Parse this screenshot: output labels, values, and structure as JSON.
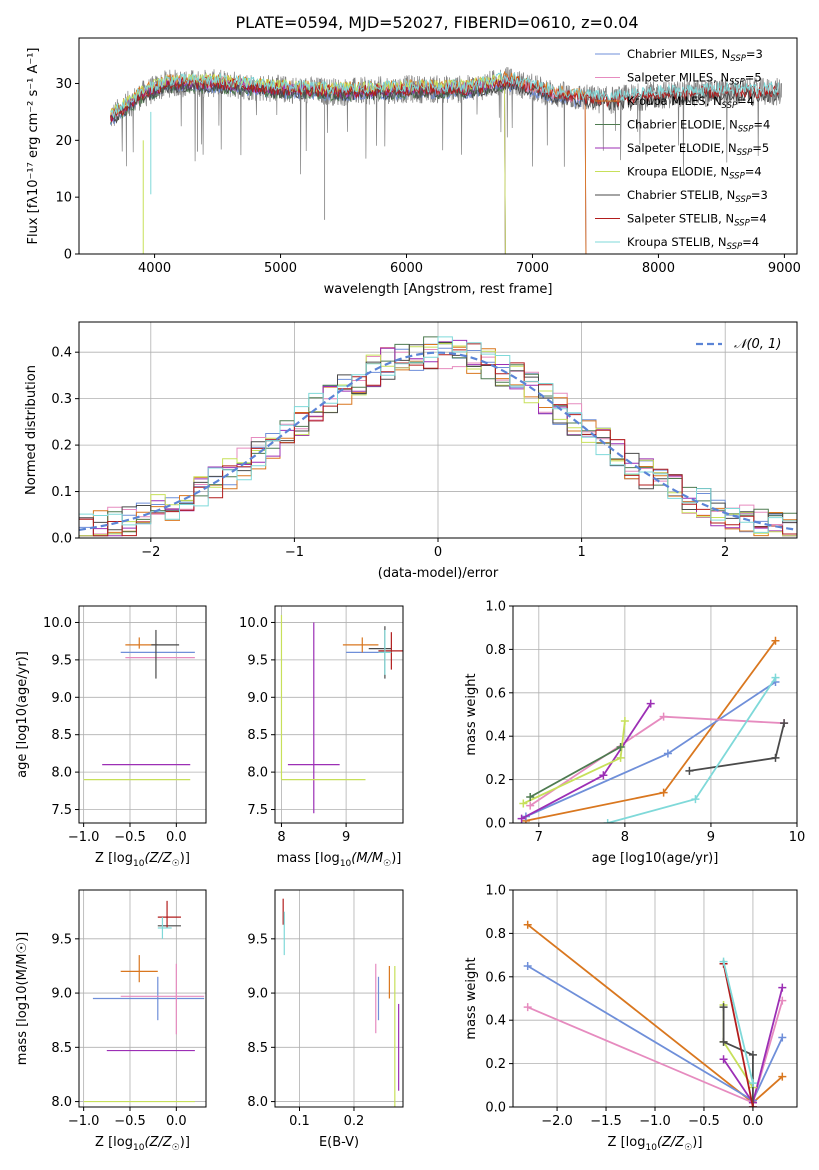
{
  "title": "PLATE=0594, MJD=52027, FIBERID=0610, z=0.04",
  "colors": {
    "Chabrier MILES": "#6f8fd9",
    "Salpeter MILES": "#e68bbf",
    "Kroupa MILES": "#d9771f",
    "Chabrier ELODIE": "#4e7b50",
    "Salpeter ELODIE": "#9c2fb5",
    "Kroupa ELODIE": "#c7e05a",
    "Chabrier STELIB": "#4a4a4a",
    "Salpeter STELIB": "#b21d1d",
    "Kroupa STELIB": "#7fd9d9",
    "gaussian": "#5b84d6"
  },
  "chart_data": [
    {
      "type": "line",
      "panel": "spectrum",
      "xlabel": "wavelength [Angstrom, rest frame]",
      "ylabel": "Flux [fλ10⁻¹⁷ erg cm⁻² s⁻¹ A⁻¹]",
      "xlim": [
        3400,
        9100
      ],
      "ylim": [
        0,
        38
      ],
      "xticks": [
        4000,
        5000,
        6000,
        7000,
        8000,
        9000
      ],
      "yticks": [
        0,
        10,
        20,
        30
      ],
      "legend_placement": "top-right",
      "legend": [
        {
          "name": "Chabrier MILES, N",
          "sub": "SSP",
          "tail": "=3"
        },
        {
          "name": "Salpeter MILES, N",
          "sub": "SSP",
          "tail": "=5"
        },
        {
          "name": "Kroupa MILES, N",
          "sub": "SSP",
          "tail": "=4"
        },
        {
          "name": "Chabrier ELODIE, N",
          "sub": "SSP",
          "tail": "=4"
        },
        {
          "name": "Salpeter ELODIE, N",
          "sub": "SSP",
          "tail": "=5"
        },
        {
          "name": "Kroupa ELODIE, N",
          "sub": "SSP",
          "tail": "=4"
        },
        {
          "name": "Chabrier STELIB, N",
          "sub": "SSP",
          "tail": "=3"
        },
        {
          "name": "Salpeter STELIB, N",
          "sub": "SSP",
          "tail": "=4"
        },
        {
          "name": "Kroupa STELIB, N",
          "sub": "SSP",
          "tail": "=4"
        }
      ],
      "data_spectrum": {
        "x_range": [
          3650,
          8980
        ],
        "continuum": [
          [
            3650,
            24
          ],
          [
            3900,
            28
          ],
          [
            4100,
            30
          ],
          [
            4500,
            30
          ],
          [
            5000,
            29
          ],
          [
            5500,
            28.5
          ],
          [
            6000,
            29
          ],
          [
            6500,
            29
          ],
          [
            6800,
            30.5
          ],
          [
            7200,
            28
          ],
          [
            7600,
            27
          ],
          [
            8000,
            28
          ],
          [
            8500,
            28.5
          ],
          [
            8980,
            28.5
          ]
        ]
      },
      "model_ends": [
        {
          "model": "Chabrier MILES",
          "x_end": 7420
        },
        {
          "model": "Salpeter MILES",
          "x_end": 7420
        },
        {
          "model": "Kroupa MILES",
          "x_end": 7420
        },
        {
          "model": "Chabrier ELODIE",
          "x_end": 6780
        },
        {
          "model": "Salpeter ELODIE",
          "x_end": 6780
        },
        {
          "model": "Kroupa ELODIE",
          "x_end": 6780
        },
        {
          "model": "Chabrier STELIB",
          "x_end": 8960
        },
        {
          "model": "Salpeter STELIB",
          "x_end": 8960
        },
        {
          "model": "Kroupa STELIB",
          "x_end": 8960
        }
      ]
    },
    {
      "type": "histogram",
      "panel": "residuals",
      "xlabel": "(data-model)/error",
      "ylabel": "Normed distribution",
      "xlim": [
        -2.5,
        2.5
      ],
      "ylim": [
        0,
        0.465
      ],
      "xticks": [
        -2,
        -1,
        0,
        1,
        2
      ],
      "yticks": [
        0.0,
        0.1,
        0.2,
        0.3,
        0.4
      ],
      "grid": true,
      "bin_width": 0.1,
      "legend_placement": "top-right",
      "gaussian": {
        "label": "𝒩(0, 1)",
        "mean": 0,
        "sigma": 1,
        "style": "dashed"
      }
    },
    {
      "type": "errorbar",
      "panel": "age-vs-Z",
      "xlabel_prefix": "Z [log",
      "xlabel_sub": "10",
      "xlabel_math": "(Z/Z",
      "xlabel_tail": ")]",
      "ylabel": "age  [log10(age/yr)]",
      "xlim": [
        -1.05,
        0.32
      ],
      "ylim": [
        7.32,
        10.22
      ],
      "xticks": [
        -1.0,
        -0.5,
        0.0
      ],
      "yticks": [
        7.5,
        8.0,
        8.5,
        9.0,
        9.5,
        10.0
      ],
      "grid": true,
      "points": [
        {
          "model": "Chabrier MILES",
          "x": -0.1,
          "y": 9.6,
          "xerr": [
            0.5,
            0.3
          ],
          "yerr": [
            0,
            0
          ]
        },
        {
          "model": "Kroupa MILES",
          "x": -0.4,
          "y": 9.7,
          "xerr": [
            0.15,
            0.2
          ],
          "yerr": [
            0.05,
            0.1
          ]
        },
        {
          "model": "Salpeter MILES",
          "x": -0.2,
          "y": 9.53,
          "xerr": [
            0.35,
            0.4
          ],
          "yerr": [
            0,
            0
          ]
        },
        {
          "model": "Salpeter ELODIE",
          "x": -0.2,
          "y": 8.1,
          "xerr": [
            0.6,
            0.35
          ],
          "yerr": [
            0,
            0
          ]
        },
        {
          "model": "Kroupa ELODIE",
          "x": -0.6,
          "y": 7.9,
          "xerr": [
            0.4,
            0.75
          ],
          "yerr": [
            0,
            0
          ]
        },
        {
          "model": "Chabrier STELIB",
          "x": -0.22,
          "y": 9.7,
          "xerr": [
            0.05,
            0.25
          ],
          "yerr": [
            0.45,
            0.2
          ]
        }
      ]
    },
    {
      "type": "errorbar",
      "panel": "age-vs-mass",
      "xlabel_prefix": "mass [log",
      "xlabel_sub": "10",
      "xlabel_math": "(M/M",
      "xlabel_tail": ")]",
      "xlim": [
        7.9,
        9.88
      ],
      "ylim": [
        7.32,
        10.22
      ],
      "xticks": [
        8,
        9
      ],
      "yticks": [
        7.5,
        8.0,
        8.5,
        9.0,
        9.5,
        10.0
      ],
      "grid": true,
      "points": [
        {
          "model": "Chabrier MILES",
          "x": 9.3,
          "y": 9.6,
          "xerr": [
            0.3,
            0.3
          ],
          "yerr": [
            0,
            0
          ]
        },
        {
          "model": "Kroupa MILES",
          "x": 9.25,
          "y": 9.7,
          "xerr": [
            0.3,
            0.25
          ],
          "yerr": [
            0.1,
            0.1
          ]
        },
        {
          "model": "Salpeter ELODIE",
          "x": 8.5,
          "y": 8.1,
          "xerr": [
            0.4,
            0.4
          ],
          "yerr": [
            0.65,
            1.9
          ]
        },
        {
          "model": "Kroupa ELODIE",
          "x": 8.0,
          "y": 7.9,
          "xerr": [
            0.0,
            1.3
          ],
          "yerr": [
            0,
            2.2
          ]
        },
        {
          "model": "Chabrier STELIB",
          "x": 9.6,
          "y": 9.65,
          "xerr": [
            0.25,
            0.1
          ],
          "yerr": [
            0.4,
            0.3
          ]
        },
        {
          "model": "Salpeter STELIB",
          "x": 9.7,
          "y": 9.62,
          "xerr": [
            0.2,
            0.2
          ],
          "yerr": [
            0.25,
            0.25
          ]
        },
        {
          "model": "Kroupa STELIB",
          "x": 9.6,
          "y": 9.6,
          "xerr": [
            0.1,
            0.1
          ],
          "yerr": [
            0.3,
            0.3
          ]
        }
      ]
    },
    {
      "type": "line",
      "panel": "mass-weight-vs-age",
      "xlabel": "age  [log10(age/yr)]",
      "ylabel": "mass weight",
      "xlim": [
        6.7,
        10.0
      ],
      "ylim": [
        0.0,
        1.0
      ],
      "xticks": [
        7,
        8,
        9,
        10
      ],
      "yticks": [
        0.0,
        0.2,
        0.4,
        0.6,
        0.8,
        1.0
      ],
      "grid": true,
      "series": [
        {
          "model": "Kroupa MILES",
          "points": [
            [
              6.85,
              0.01
            ],
            [
              8.45,
              0.14
            ],
            [
              9.75,
              0.84
            ]
          ]
        },
        {
          "model": "Chabrier MILES",
          "points": [
            [
              6.85,
              0.03
            ],
            [
              8.5,
              0.32
            ],
            [
              9.75,
              0.65
            ]
          ]
        },
        {
          "model": "Salpeter MILES",
          "points": [
            [
              6.9,
              0.08
            ],
            [
              8.45,
              0.49
            ],
            [
              9.85,
              0.46
            ]
          ]
        },
        {
          "model": "Salpeter ELODIE",
          "points": [
            [
              6.8,
              0.02
            ],
            [
              7.75,
              0.22
            ],
            [
              8.3,
              0.55
            ]
          ]
        },
        {
          "model": "Kroupa ELODIE",
          "points": [
            [
              6.82,
              0.09
            ],
            [
              7.95,
              0.3
            ],
            [
              8.0,
              0.47
            ]
          ]
        },
        {
          "model": "Chabrier STELIB",
          "points": [
            [
              8.75,
              0.24
            ],
            [
              9.75,
              0.3
            ],
            [
              9.85,
              0.46
            ]
          ]
        },
        {
          "model": "Chabrier ELODIE",
          "points": [
            [
              6.9,
              0.12
            ],
            [
              7.95,
              0.35
            ]
          ]
        },
        {
          "model": "Kroupa STELIB",
          "points": [
            [
              7.8,
              0.0
            ],
            [
              8.82,
              0.11
            ],
            [
              9.75,
              0.67
            ]
          ]
        }
      ]
    },
    {
      "type": "errorbar",
      "panel": "mass-vs-Z",
      "xlabel_prefix": "Z [log",
      "xlabel_sub": "10",
      "xlabel_math": "(Z/Z",
      "xlabel_tail": ")]",
      "ylabel": "mass [log10(M/M☉)]",
      "xlim": [
        -1.05,
        0.32
      ],
      "ylim": [
        7.95,
        9.95
      ],
      "xticks": [
        -1.0,
        -0.5,
        0.0
      ],
      "yticks": [
        8.0,
        8.5,
        9.0,
        9.5
      ],
      "grid": true,
      "points": [
        {
          "model": "Chabrier MILES",
          "x": -0.2,
          "y": 8.95,
          "xerr": [
            0.7,
            0.5
          ],
          "yerr": [
            0.2,
            0.2
          ]
        },
        {
          "model": "Kroupa MILES",
          "x": -0.4,
          "y": 9.2,
          "xerr": [
            0.2,
            0.2
          ],
          "yerr": [
            0.1,
            0.15
          ]
        },
        {
          "model": "Salpeter MILES",
          "x": 0.0,
          "y": 8.97,
          "xerr": [
            0.6,
            0.3
          ],
          "yerr": [
            0.35,
            0.3
          ]
        },
        {
          "model": "Salpeter ELODIE",
          "x": -0.2,
          "y": 8.47,
          "xerr": [
            0.55,
            0.4
          ],
          "yerr": [
            0,
            0
          ]
        },
        {
          "model": "Kroupa ELODIE",
          "x": -0.2,
          "y": 8.0,
          "xerr": [
            0.8,
            0.4
          ],
          "yerr": [
            0,
            0
          ]
        },
        {
          "model": "Chabrier STELIB",
          "x": -0.1,
          "y": 9.62,
          "xerr": [
            0.1,
            0.15
          ],
          "yerr": [
            0,
            0
          ]
        },
        {
          "model": "Salpeter STELIB",
          "x": -0.1,
          "y": 9.7,
          "xerr": [
            0.1,
            0.15
          ],
          "yerr": [
            0.1,
            0.15
          ]
        },
        {
          "model": "Kroupa STELIB",
          "x": -0.15,
          "y": 9.6,
          "xerr": [
            0.05,
            0.1
          ],
          "yerr": [
            0.1,
            0.1
          ]
        }
      ]
    },
    {
      "type": "errorbar",
      "panel": "mass-vs-EBV",
      "xlabel": "E(B-V)",
      "xlim": [
        0.055,
        0.29
      ],
      "ylim": [
        7.95,
        9.95
      ],
      "xticks": [
        0.1,
        0.2
      ],
      "yticks": [
        8.0,
        8.5,
        9.0,
        9.5
      ],
      "grid": true,
      "points": [
        {
          "model": "Salpeter STELIB",
          "x": 0.07,
          "y": 9.75,
          "xerr": [
            0,
            0
          ],
          "yerr": [
            0.12,
            0.12
          ]
        },
        {
          "model": "Kroupa STELIB",
          "x": 0.072,
          "y": 9.55,
          "xerr": [
            0,
            0
          ],
          "yerr": [
            0.2,
            0.2
          ]
        },
        {
          "model": "Salpeter MILES",
          "x": 0.24,
          "y": 8.95,
          "xerr": [
            0,
            0
          ],
          "yerr": [
            0.32,
            0.32
          ]
        },
        {
          "model": "Chabrier MILES",
          "x": 0.245,
          "y": 8.95,
          "xerr": [
            0,
            0
          ],
          "yerr": [
            0.2,
            0.2
          ]
        },
        {
          "model": "Kroupa MILES",
          "x": 0.265,
          "y": 9.1,
          "xerr": [
            0,
            0
          ],
          "yerr": [
            0.15,
            0.15
          ]
        },
        {
          "model": "Kroupa ELODIE",
          "x": 0.275,
          "y": 8.6,
          "xerr": [
            0,
            0
          ],
          "yerr": [
            0.65,
            0.65
          ]
        },
        {
          "model": "Salpeter ELODIE",
          "x": 0.282,
          "y": 8.5,
          "xerr": [
            0,
            0
          ],
          "yerr": [
            0.4,
            0.4
          ]
        }
      ]
    },
    {
      "type": "line",
      "panel": "mass-weight-vs-Z",
      "xlabel_prefix": "Z [log",
      "xlabel_sub": "10",
      "xlabel_math": "(Z/Z",
      "xlabel_tail": ")]",
      "ylabel": "mass weight",
      "xlim": [
        -2.45,
        0.45
      ],
      "ylim": [
        0.0,
        1.0
      ],
      "xticks": [
        -2.0,
        -1.5,
        -1.0,
        -0.5,
        0.0
      ],
      "yticks": [
        0.0,
        0.2,
        0.4,
        0.6,
        0.8,
        1.0
      ],
      "grid": true,
      "series": [
        {
          "model": "Kroupa MILES",
          "points": [
            [
              -2.3,
              0.84
            ],
            [
              0.0,
              0.02
            ],
            [
              0.3,
              0.14
            ]
          ]
        },
        {
          "model": "Chabrier MILES",
          "points": [
            [
              -2.3,
              0.65
            ],
            [
              0.0,
              0.03
            ],
            [
              0.3,
              0.32
            ]
          ]
        },
        {
          "model": "Salpeter MILES",
          "points": [
            [
              -2.3,
              0.46
            ],
            [
              0.0,
              0.02
            ],
            [
              0.3,
              0.49
            ]
          ]
        },
        {
          "model": "Salpeter ELODIE",
          "points": [
            [
              -0.3,
              0.22
            ],
            [
              0.0,
              0.02
            ],
            [
              0.3,
              0.55
            ]
          ]
        },
        {
          "model": "Kroupa ELODIE",
          "points": [
            [
              -0.3,
              0.47
            ],
            [
              -0.3,
              0.3
            ],
            [
              0.0,
              0.09
            ]
          ]
        },
        {
          "model": "Chabrier STELIB",
          "points": [
            [
              -0.3,
              0.46
            ],
            [
              -0.3,
              0.3
            ],
            [
              0.0,
              0.24
            ],
            [
              0.0,
              0.0
            ]
          ]
        },
        {
          "model": "Salpeter STELIB",
          "points": [
            [
              -0.3,
              0.66
            ],
            [
              0.0,
              0.0
            ]
          ]
        },
        {
          "model": "Kroupa STELIB",
          "points": [
            [
              -0.3,
              0.67
            ],
            [
              0.0,
              0.11
            ]
          ]
        }
      ]
    }
  ]
}
